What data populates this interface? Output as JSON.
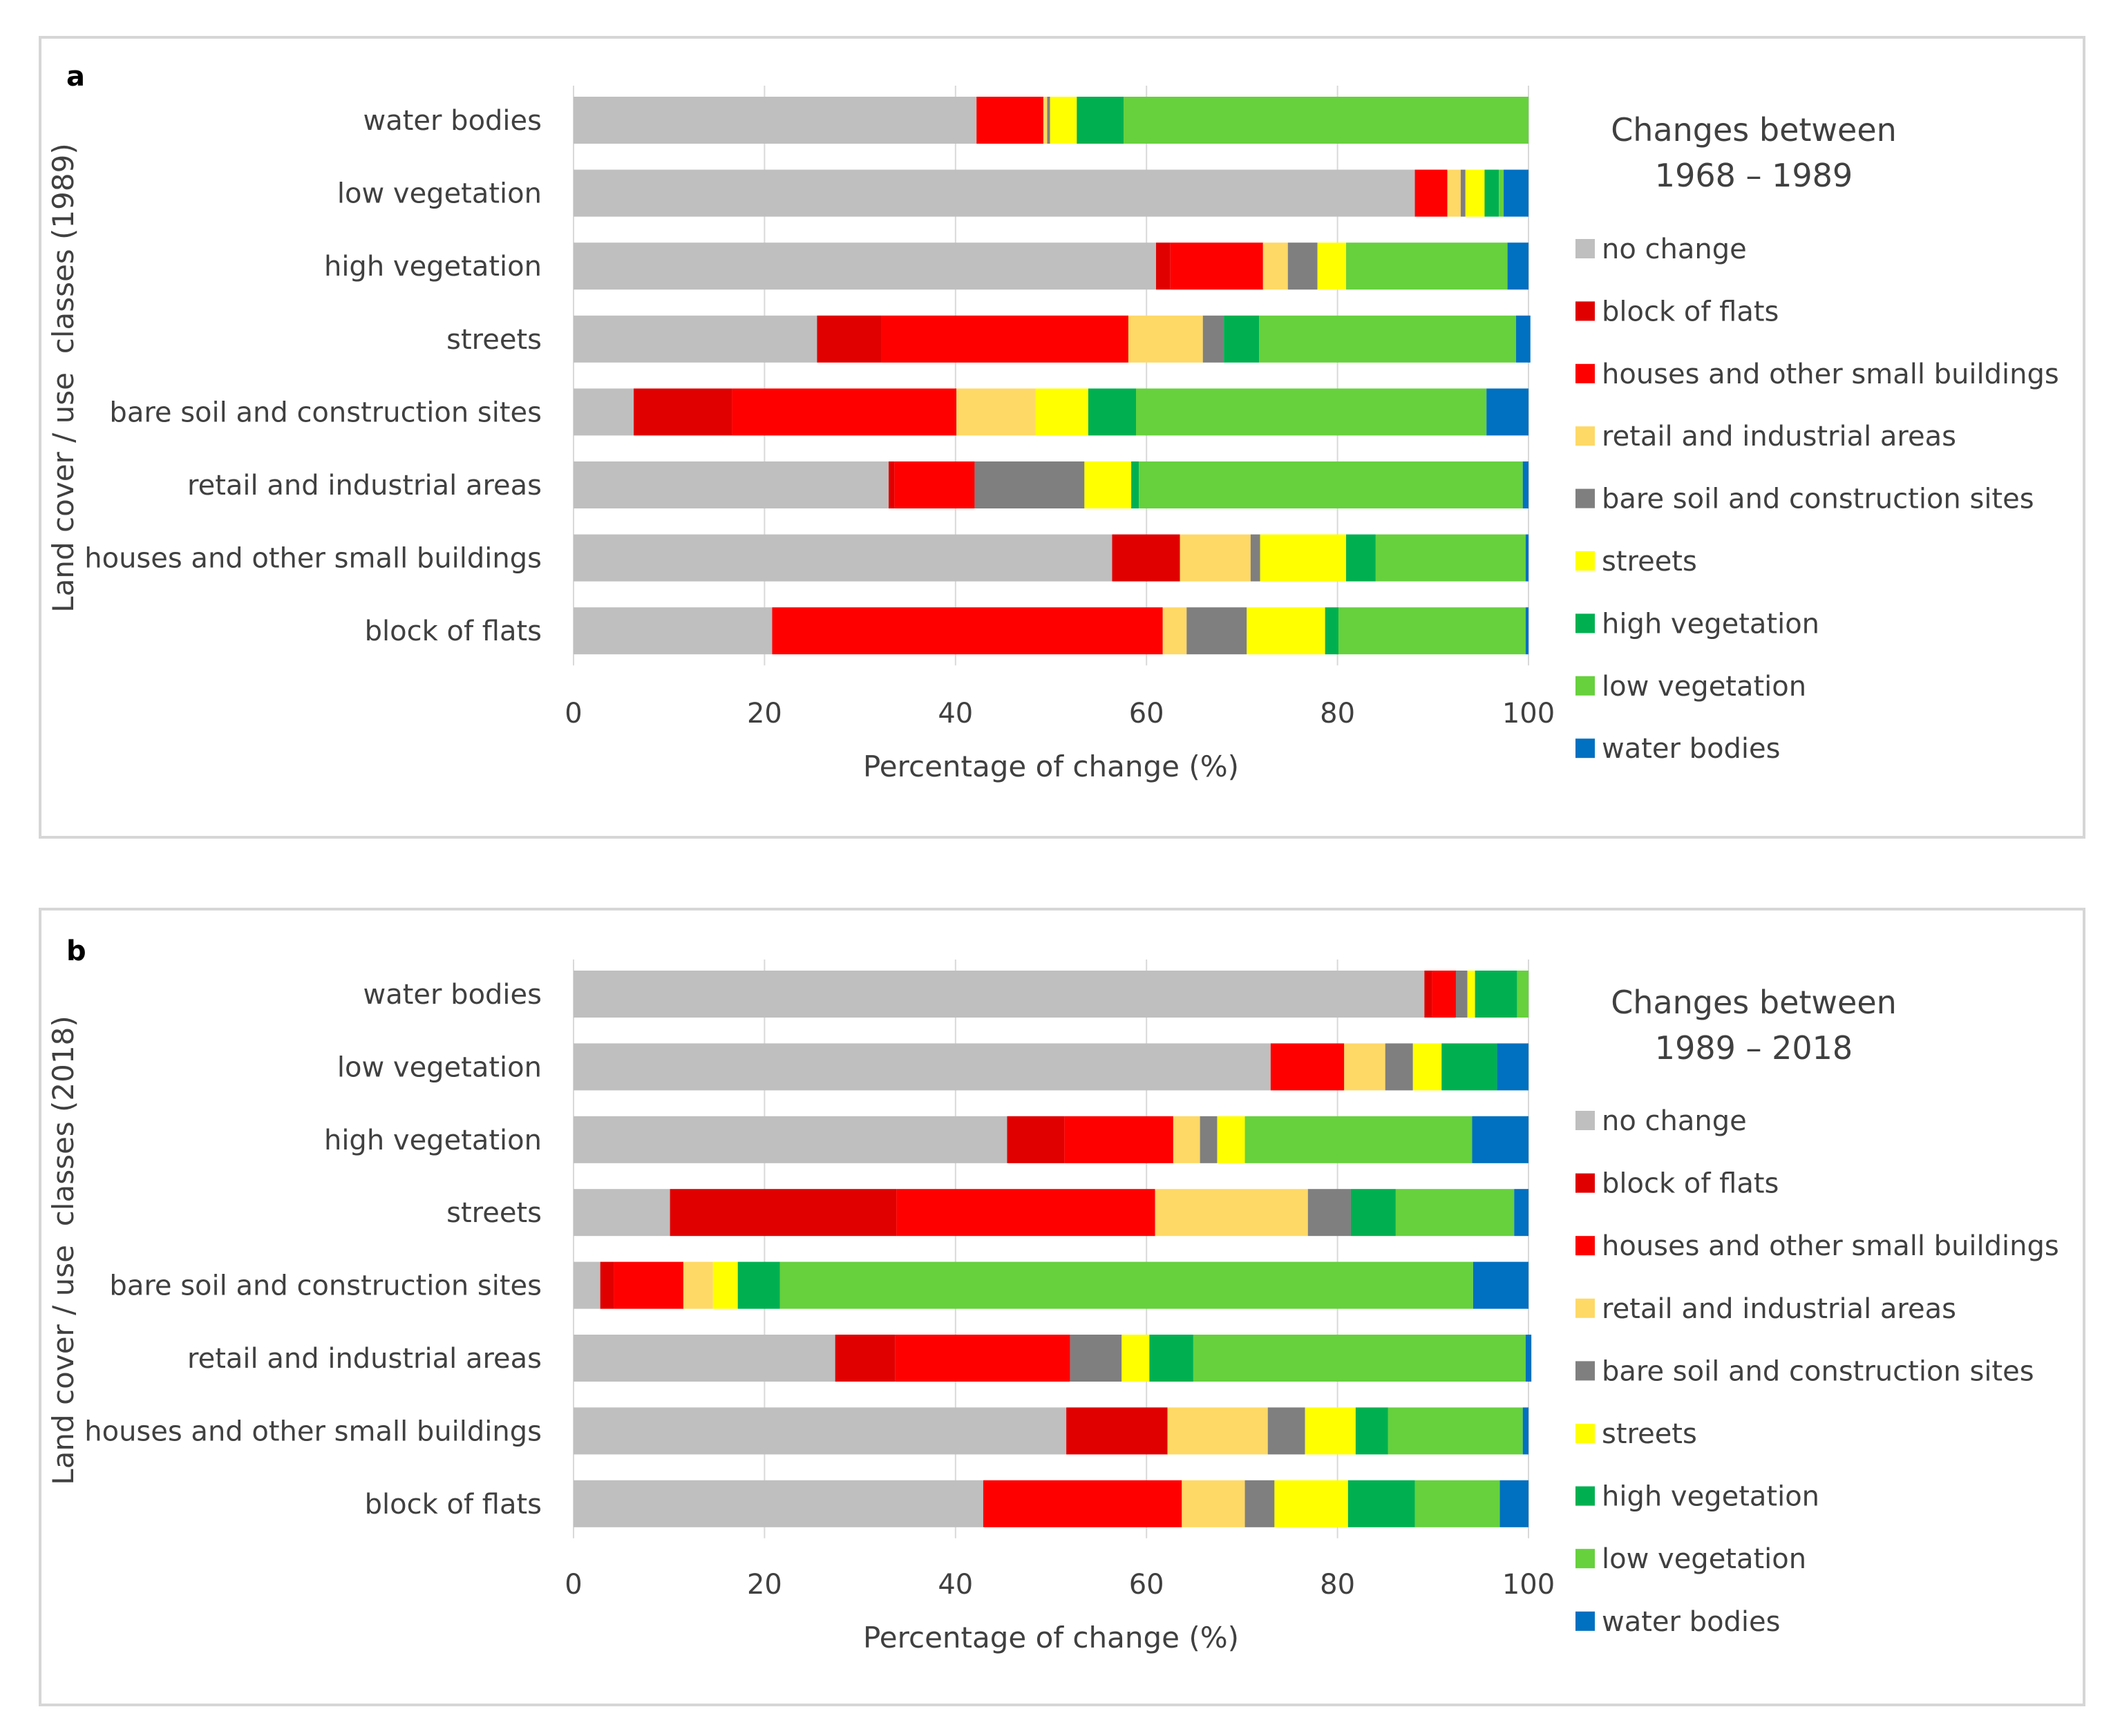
{
  "chart_data": [
    {
      "panel": "a",
      "type": "bar",
      "orientation": "horizontal",
      "stacked": true,
      "xlabel": "Percentage of change (%)",
      "ylabel": "Land cover / use  classes (1989)",
      "xlim": [
        0,
        100
      ],
      "xticks": [
        "0",
        "20",
        "40",
        "60",
        "80",
        "100"
      ],
      "grid": true,
      "legend_title_lines": [
        "Changes between",
        "1968 – 1989"
      ],
      "legend_position": "right",
      "categories": [
        "water bodies",
        "low vegetation",
        "high vegetation",
        "streets",
        "bare soil and construction sites",
        "retail and industrial areas",
        "houses and other small buildings",
        "block of flats"
      ],
      "series": [
        {
          "name": "no change",
          "color": "#bfbfbf",
          "values": [
            42.2,
            88.1,
            61.0,
            25.5,
            6.3,
            33.0,
            56.4,
            20.8
          ]
        },
        {
          "name": "block of flats",
          "color": "#e00000",
          "values": [
            0.0,
            0.0,
            1.5,
            6.7,
            10.3,
            0.6,
            7.1,
            0.0
          ]
        },
        {
          "name": "houses and other small buildings",
          "color": "#ff0000",
          "values": [
            7.0,
            3.4,
            9.7,
            25.9,
            23.5,
            8.4,
            0.0,
            40.9
          ]
        },
        {
          "name": "retail and industrial areas",
          "color": "#ffd966",
          "values": [
            0.4,
            1.4,
            2.6,
            7.8,
            8.3,
            0.0,
            7.4,
            2.5
          ]
        },
        {
          "name": "bare soil and construction sites",
          "color": "#7f7f7f",
          "values": [
            0.3,
            0.5,
            3.1,
            2.2,
            0.0,
            11.5,
            1.0,
            6.3
          ]
        },
        {
          "name": "streets",
          "color": "#ffff00",
          "values": [
            2.8,
            2.0,
            3.0,
            0.0,
            5.5,
            4.9,
            9.0,
            8.2
          ]
        },
        {
          "name": "high vegetation",
          "color": "#00b050",
          "values": [
            4.9,
            1.5,
            0.0,
            3.7,
            5.0,
            0.8,
            3.1,
            1.4
          ]
        },
        {
          "name": "low vegetation",
          "color": "#66d13d",
          "values": [
            42.4,
            0.5,
            16.9,
            26.9,
            36.7,
            40.2,
            15.7,
            19.6
          ]
        },
        {
          "name": "water bodies",
          "color": "#0070c0",
          "values": [
            0.0,
            2.6,
            2.2,
            1.5,
            4.4,
            0.6,
            0.3,
            0.3
          ]
        }
      ]
    },
    {
      "panel": "b",
      "type": "bar",
      "orientation": "horizontal",
      "stacked": true,
      "xlabel": "Percentage of change (%)",
      "ylabel": "Land cover / use  classes (2018)",
      "xlim": [
        0,
        100
      ],
      "xticks": [
        "0",
        "20",
        "40",
        "60",
        "80",
        "100"
      ],
      "grid": true,
      "legend_title_lines": [
        "Changes between",
        "1989 – 2018"
      ],
      "legend_position": "right",
      "categories": [
        "water bodies",
        "low vegetation",
        "high vegetation",
        "streets",
        "bare soil and construction sites",
        "retail and industrial areas",
        "houses and other small buildings",
        "block of flats"
      ],
      "series": [
        {
          "name": "no change",
          "color": "#bfbfbf",
          "values": [
            89.1,
            73.0,
            45.4,
            10.1,
            2.8,
            27.4,
            51.6,
            42.9
          ]
        },
        {
          "name": "block of flats",
          "color": "#e00000",
          "values": [
            0.8,
            0.0,
            6.0,
            23.7,
            1.4,
            6.3,
            10.6,
            0.0
          ]
        },
        {
          "name": "houses and other small buildings",
          "color": "#ff0000",
          "values": [
            2.5,
            7.7,
            11.4,
            27.1,
            7.3,
            18.3,
            0.0,
            20.8
          ]
        },
        {
          "name": "retail and industrial areas",
          "color": "#ffd966",
          "values": [
            0.0,
            4.3,
            2.8,
            16.0,
            3.1,
            0.0,
            10.5,
            6.6
          ]
        },
        {
          "name": "bare soil and construction sites",
          "color": "#7f7f7f",
          "values": [
            1.2,
            2.9,
            1.8,
            4.5,
            0.0,
            5.4,
            3.9,
            3.1
          ]
        },
        {
          "name": "streets",
          "color": "#ffff00",
          "values": [
            0.8,
            3.0,
            2.9,
            0.0,
            2.6,
            2.9,
            5.3,
            7.7
          ]
        },
        {
          "name": "high vegetation",
          "color": "#00b050",
          "values": [
            4.4,
            5.8,
            0.0,
            4.7,
            4.4,
            4.6,
            3.4,
            7.0
          ]
        },
        {
          "name": "low vegetation",
          "color": "#66d13d",
          "values": [
            1.2,
            0.0,
            23.8,
            12.4,
            72.6,
            34.8,
            14.1,
            8.9
          ]
        },
        {
          "name": "water bodies",
          "color": "#0070c0",
          "values": [
            0.0,
            3.3,
            5.9,
            1.5,
            5.8,
            0.6,
            0.6,
            3.0
          ]
        }
      ]
    }
  ]
}
